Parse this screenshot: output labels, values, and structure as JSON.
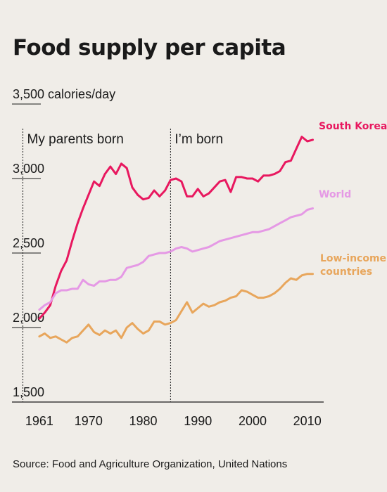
{
  "chart_data": {
    "type": "line",
    "title": "Food supply per capita",
    "source": "Source: Food and Agriculture Organization, United Nations",
    "xlim": [
      1956,
      2013
    ],
    "ylim": [
      1500,
      3500
    ],
    "y_ticks": [
      1500,
      2000,
      2500,
      3000,
      3500
    ],
    "y_tick_labels": [
      "1,500",
      "2,000",
      "2,500",
      "3,000",
      "3,500 calories/day"
    ],
    "x_ticks": [
      1961,
      1970,
      1980,
      1990,
      2000,
      2010
    ],
    "x_tick_labels": [
      "1961",
      "1970",
      "1980",
      "1990",
      "2000",
      "2010"
    ],
    "annotations": [
      {
        "x": 1958,
        "label": "My parents born"
      },
      {
        "x": 1985,
        "label": "I’m born"
      }
    ],
    "x": [
      1961,
      1962,
      1963,
      1964,
      1965,
      1966,
      1967,
      1968,
      1969,
      1970,
      1971,
      1972,
      1973,
      1974,
      1975,
      1976,
      1977,
      1978,
      1979,
      1980,
      1981,
      1982,
      1983,
      1984,
      1985,
      1986,
      1987,
      1988,
      1989,
      1990,
      1991,
      1992,
      1993,
      1994,
      1995,
      1996,
      1997,
      1998,
      1999,
      2000,
      2001,
      2002,
      2003,
      2004,
      2005,
      2006,
      2007,
      2008,
      2009,
      2010,
      2011
    ],
    "series": [
      {
        "name": "South Korea",
        "color": "#e8185f",
        "values": [
          2060,
          2100,
          2150,
          2280,
          2380,
          2450,
          2580,
          2700,
          2800,
          2890,
          2980,
          2950,
          3030,
          3080,
          3030,
          3100,
          3070,
          2940,
          2890,
          2860,
          2870,
          2920,
          2880,
          2920,
          2990,
          3000,
          2980,
          2880,
          2880,
          2930,
          2880,
          2900,
          2940,
          2980,
          2990,
          2910,
          3010,
          3010,
          3000,
          3000,
          2980,
          3020,
          3020,
          3030,
          3050,
          3110,
          3120,
          3200,
          3280,
          3250,
          3260
        ]
      },
      {
        "name": "World",
        "color": "#e599e5",
        "values": [
          2120,
          2150,
          2170,
          2230,
          2250,
          2250,
          2260,
          2260,
          2320,
          2290,
          2280,
          2310,
          2310,
          2320,
          2320,
          2340,
          2400,
          2410,
          2420,
          2440,
          2480,
          2490,
          2500,
          2500,
          2510,
          2530,
          2540,
          2530,
          2510,
          2520,
          2530,
          2540,
          2560,
          2580,
          2590,
          2600,
          2610,
          2620,
          2630,
          2640,
          2640,
          2650,
          2660,
          2680,
          2700,
          2720,
          2740,
          2750,
          2760,
          2790,
          2800
        ]
      },
      {
        "name": "Low-income countries",
        "color": "#e8a65c",
        "values": [
          1940,
          1960,
          1930,
          1940,
          1920,
          1900,
          1930,
          1940,
          1980,
          2020,
          1970,
          1950,
          1980,
          1960,
          1980,
          1930,
          2000,
          2030,
          1990,
          1960,
          1980,
          2040,
          2040,
          2020,
          2030,
          2050,
          2110,
          2170,
          2100,
          2130,
          2160,
          2140,
          2150,
          2170,
          2180,
          2200,
          2210,
          2250,
          2240,
          2220,
          2200,
          2200,
          2210,
          2230,
          2260,
          2300,
          2330,
          2320,
          2350,
          2360,
          2360
        ]
      }
    ]
  }
}
